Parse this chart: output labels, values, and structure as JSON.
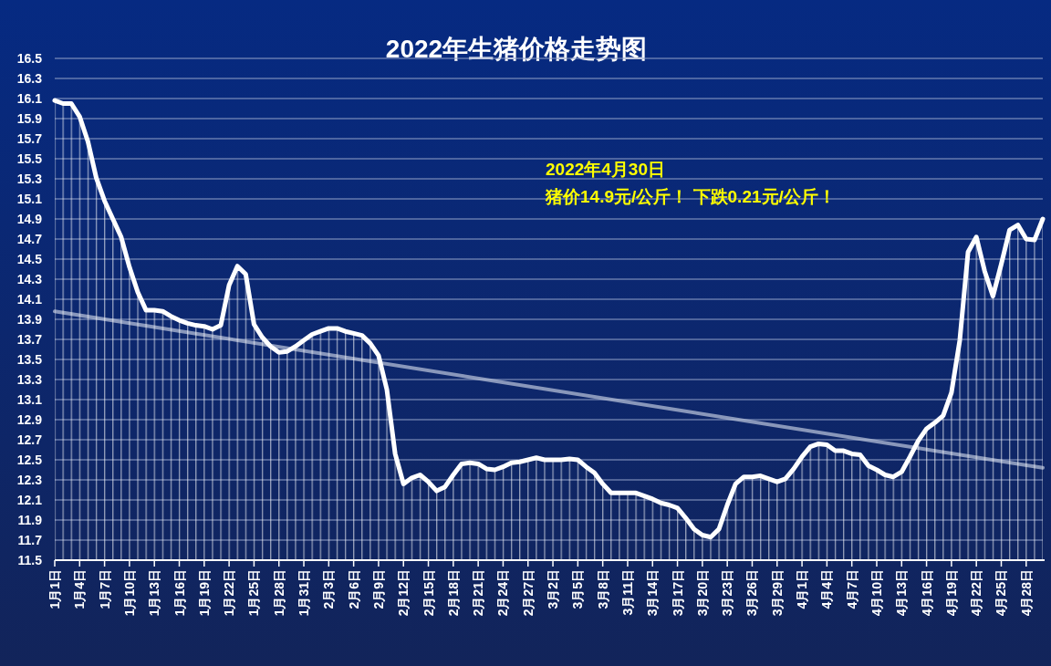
{
  "chart_data": {
    "type": "line",
    "title": "2022年生猪价格走势图",
    "annotations": [
      "2022年4月30日",
      "猪价14.9元/公斤！ 下跌0.21元/公斤！"
    ],
    "x": [
      "2022-01-01",
      "2022-01-02",
      "2022-01-03",
      "2022-01-04",
      "2022-01-05",
      "2022-01-06",
      "2022-01-07",
      "2022-01-08",
      "2022-01-09",
      "2022-01-10",
      "2022-01-11",
      "2022-01-12",
      "2022-01-13",
      "2022-01-14",
      "2022-01-15",
      "2022-01-16",
      "2022-01-17",
      "2022-01-18",
      "2022-01-19",
      "2022-01-20",
      "2022-01-21",
      "2022-01-22",
      "2022-01-23",
      "2022-01-24",
      "2022-01-25",
      "2022-01-26",
      "2022-01-27",
      "2022-01-28",
      "2022-01-29",
      "2022-01-30",
      "2022-01-31",
      "2022-02-01",
      "2022-02-02",
      "2022-02-03",
      "2022-02-04",
      "2022-02-05",
      "2022-02-06",
      "2022-02-07",
      "2022-02-08",
      "2022-02-09",
      "2022-02-10",
      "2022-02-11",
      "2022-02-12",
      "2022-02-13",
      "2022-02-14",
      "2022-02-15",
      "2022-02-16",
      "2022-02-17",
      "2022-02-18",
      "2022-02-19",
      "2022-02-20",
      "2022-02-21",
      "2022-02-22",
      "2022-02-23",
      "2022-02-24",
      "2022-02-25",
      "2022-02-26",
      "2022-02-27",
      "2022-02-28",
      "2022-03-01",
      "2022-03-02",
      "2022-03-03",
      "2022-03-04",
      "2022-03-05",
      "2022-03-06",
      "2022-03-07",
      "2022-03-08",
      "2022-03-09",
      "2022-03-10",
      "2022-03-11",
      "2022-03-12",
      "2022-03-13",
      "2022-03-14",
      "2022-03-15",
      "2022-03-16",
      "2022-03-17",
      "2022-03-18",
      "2022-03-19",
      "2022-03-20",
      "2022-03-21",
      "2022-03-22",
      "2022-03-23",
      "2022-03-24",
      "2022-03-25",
      "2022-03-26",
      "2022-03-27",
      "2022-03-28",
      "2022-03-29",
      "2022-03-30",
      "2022-03-31",
      "2022-04-01",
      "2022-04-02",
      "2022-04-03",
      "2022-04-04",
      "2022-04-05",
      "2022-04-06",
      "2022-04-07",
      "2022-04-08",
      "2022-04-09",
      "2022-04-10",
      "2022-04-11",
      "2022-04-12",
      "2022-04-13",
      "2022-04-14",
      "2022-04-15",
      "2022-04-16",
      "2022-04-17",
      "2022-04-18",
      "2022-04-19",
      "2022-04-20",
      "2022-04-21",
      "2022-04-22",
      "2022-04-23",
      "2022-04-24",
      "2022-04-25",
      "2022-04-26",
      "2022-04-27",
      "2022-04-28",
      "2022-04-29",
      "2022-04-30"
    ],
    "series": [
      {
        "type": "area",
        "color": "#ffffff",
        "values": [
          16.08,
          16.05,
          16.05,
          15.92,
          15.67,
          15.31,
          15.08,
          14.9,
          14.72,
          14.42,
          14.17,
          13.99,
          13.99,
          13.98,
          13.93,
          13.89,
          13.86,
          13.84,
          13.83,
          13.8,
          13.84,
          14.24,
          14.43,
          14.35,
          13.85,
          13.72,
          13.63,
          13.57,
          13.58,
          13.63,
          13.69,
          13.75,
          13.78,
          13.81,
          13.81,
          13.78,
          13.76,
          13.74,
          13.66,
          13.54,
          13.2,
          12.56,
          12.26,
          12.32,
          12.35,
          12.28,
          12.19,
          12.23,
          12.35,
          12.46,
          12.47,
          12.46,
          12.41,
          12.4,
          12.43,
          12.47,
          12.48,
          12.5,
          12.52,
          12.5,
          12.5,
          12.5,
          12.51,
          12.5,
          12.43,
          12.37,
          12.26,
          12.17,
          12.17,
          12.17,
          12.17,
          12.14,
          12.11,
          12.07,
          12.05,
          12.02,
          11.92,
          11.81,
          11.75,
          11.73,
          11.81,
          12.05,
          12.26,
          12.33,
          12.33,
          12.34,
          12.31,
          12.28,
          12.31,
          12.41,
          12.53,
          12.63,
          12.66,
          12.65,
          12.59,
          12.59,
          12.56,
          12.55,
          12.44,
          12.4,
          12.35,
          12.33,
          12.38,
          12.53,
          12.69,
          12.81,
          12.87,
          12.94,
          13.17,
          13.69,
          14.57,
          14.72,
          14.38,
          14.13,
          14.45,
          14.79,
          14.84,
          14.7,
          14.69,
          14.9
        ]
      },
      {
        "color": "#b3bdd6",
        "x": [
          "2022-01-01",
          "2022-04-30"
        ],
        "values": [
          13.98,
          12.42
        ]
      }
    ],
    "xlim": [
      "2022-01-01",
      "2022-04-30"
    ],
    "xticks": [
      {
        "value": "2022-01-01",
        "label": "1月1日"
      },
      {
        "value": "2022-01-04",
        "label": "1月4日"
      },
      {
        "value": "2022-01-07",
        "label": "1月7日"
      },
      {
        "value": "2022-01-10",
        "label": "1月10日"
      },
      {
        "value": "2022-01-13",
        "label": "1月13日"
      },
      {
        "value": "2022-01-16",
        "label": "1月16日"
      },
      {
        "value": "2022-01-19",
        "label": "1月19日"
      },
      {
        "value": "2022-01-22",
        "label": "1月22日"
      },
      {
        "value": "2022-01-25",
        "label": "1月25日"
      },
      {
        "value": "2022-01-28",
        "label": "1月28日"
      },
      {
        "value": "2022-01-31",
        "label": "1月31日"
      },
      {
        "value": "2022-02-03",
        "label": "2月3日"
      },
      {
        "value": "2022-02-06",
        "label": "2月6日"
      },
      {
        "value": "2022-02-09",
        "label": "2月9日"
      },
      {
        "value": "2022-02-12",
        "label": "2月12日"
      },
      {
        "value": "2022-02-15",
        "label": "2月15日"
      },
      {
        "value": "2022-02-18",
        "label": "2月18日"
      },
      {
        "value": "2022-02-21",
        "label": "2月21日"
      },
      {
        "value": "2022-02-24",
        "label": "2月24日"
      },
      {
        "value": "2022-02-27",
        "label": "2月27日"
      },
      {
        "value": "2022-03-02",
        "label": "3月2日"
      },
      {
        "value": "2022-03-05",
        "label": "3月5日"
      },
      {
        "value": "2022-03-08",
        "label": "3月8日"
      },
      {
        "value": "2022-03-11",
        "label": "3月11日"
      },
      {
        "value": "2022-03-14",
        "label": "3月14日"
      },
      {
        "value": "2022-03-17",
        "label": "3月17日"
      },
      {
        "value": "2022-03-20",
        "label": "3月20日"
      },
      {
        "value": "2022-03-23",
        "label": "3月23日"
      },
      {
        "value": "2022-03-26",
        "label": "3月26日"
      },
      {
        "value": "2022-03-29",
        "label": "3月29日"
      },
      {
        "value": "2022-04-01",
        "label": "4月1日"
      },
      {
        "value": "2022-04-04",
        "label": "4月4日"
      },
      {
        "value": "2022-04-07",
        "label": "4月7日"
      },
      {
        "value": "2022-04-10",
        "label": "4月10日"
      },
      {
        "value": "2022-04-13",
        "label": "4月13日"
      },
      {
        "value": "2022-04-16",
        "label": "4月16日"
      },
      {
        "value": "2022-04-19",
        "label": "4月19日"
      },
      {
        "value": "2022-04-22",
        "label": "4月22日"
      },
      {
        "value": "2022-04-25",
        "label": "4月25日"
      },
      {
        "value": "2022-04-28",
        "label": "4月28日"
      }
    ],
    "ylim": [
      11.5,
      16.5
    ],
    "yticks": [
      11.5,
      11.7,
      11.9,
      12.1,
      12.3,
      12.5,
      12.7,
      12.9,
      13.1,
      13.3,
      13.5,
      13.7,
      13.9,
      14.1,
      14.3,
      14.5,
      14.7,
      14.9,
      15.1,
      15.3,
      15.5,
      15.7,
      15.9,
      16.1,
      16.3,
      16.5
    ],
    "grid": "y"
  }
}
